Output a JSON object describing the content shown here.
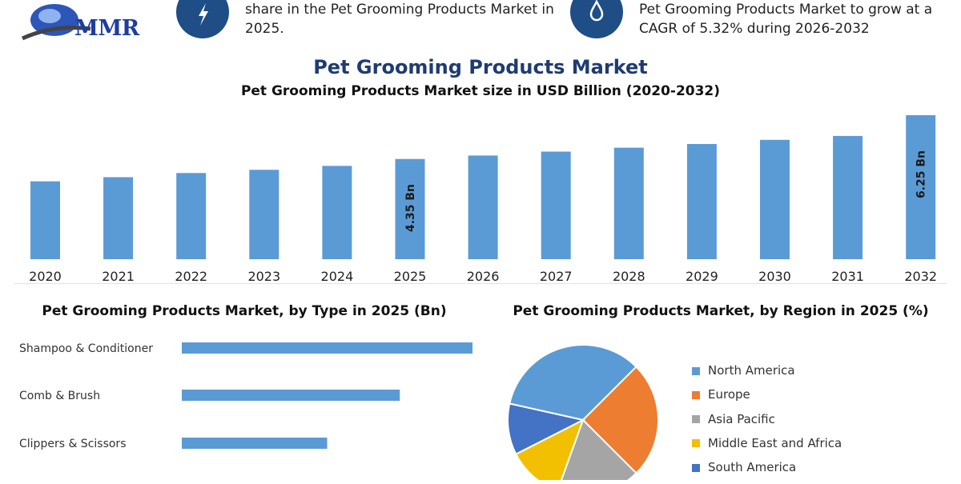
{
  "header": {
    "logo_text": "MMR",
    "highlights": [
      {
        "icon": "lightning-icon",
        "lines": [
          "share in the Pet Grooming Products Market in",
          "2025."
        ]
      },
      {
        "icon": "drop-icon",
        "lines": [
          "Pet Grooming Products Market to grow at a",
          "CAGR of 5.32% during 2026-2032"
        ]
      }
    ]
  },
  "colors": {
    "bar": "#5b9bd5",
    "icon_circle": "#1f4e86",
    "title": "#1f3b73"
  },
  "main": {
    "title": "Pet Grooming Products Market",
    "subtitle": "Pet Grooming Products Market size in USD Billion (2020-2032)"
  },
  "type_section": {
    "title": "Pet Grooming Products Market, by Type in 2025 (Bn)"
  },
  "region_section": {
    "title": "Pet Grooming Products Market, by Region in 2025 (%)"
  },
  "chart_data": [
    {
      "type": "bar",
      "title": "Pet Grooming Products Market size in USD Billion (2020-2032)",
      "categories": [
        "2020",
        "2021",
        "2022",
        "2023",
        "2024",
        "2025",
        "2026",
        "2027",
        "2028",
        "2029",
        "2030",
        "2031",
        "2032"
      ],
      "values": [
        3.38,
        3.56,
        3.74,
        3.88,
        4.05,
        4.35,
        4.5,
        4.67,
        4.84,
        5.0,
        5.18,
        5.35,
        6.25
      ],
      "data_labels": {
        "2025": "4.35 Bn",
        "2032": "6.25 Bn"
      },
      "ylim": [
        0,
        6.5
      ],
      "grid": false,
      "color": "#5b9bd5"
    },
    {
      "type": "bar",
      "orientation": "horizontal",
      "title": "Pet Grooming Products Market, by Type in 2025 (Bn)",
      "categories": [
        "Shampoo & Conditioner",
        "Comb & Brush",
        "Clippers & Scissors"
      ],
      "values": [
        1.6,
        1.2,
        0.8
      ],
      "xlim": [
        0,
        1.6
      ],
      "color": "#5b9bd5"
    },
    {
      "type": "pie",
      "title": "Pet Grooming Products Market, by Region in 2025 (%)",
      "labels": [
        "North America",
        "Europe",
        "Asia Pacific",
        "Middle East and Africa",
        "South America"
      ],
      "values": [
        34,
        25,
        18,
        12,
        11
      ],
      "colors": [
        "#5b9bd5",
        "#ed7d31",
        "#a5a5a5",
        "#f2c000",
        "#4472c4"
      ],
      "legend_position": "right"
    }
  ]
}
